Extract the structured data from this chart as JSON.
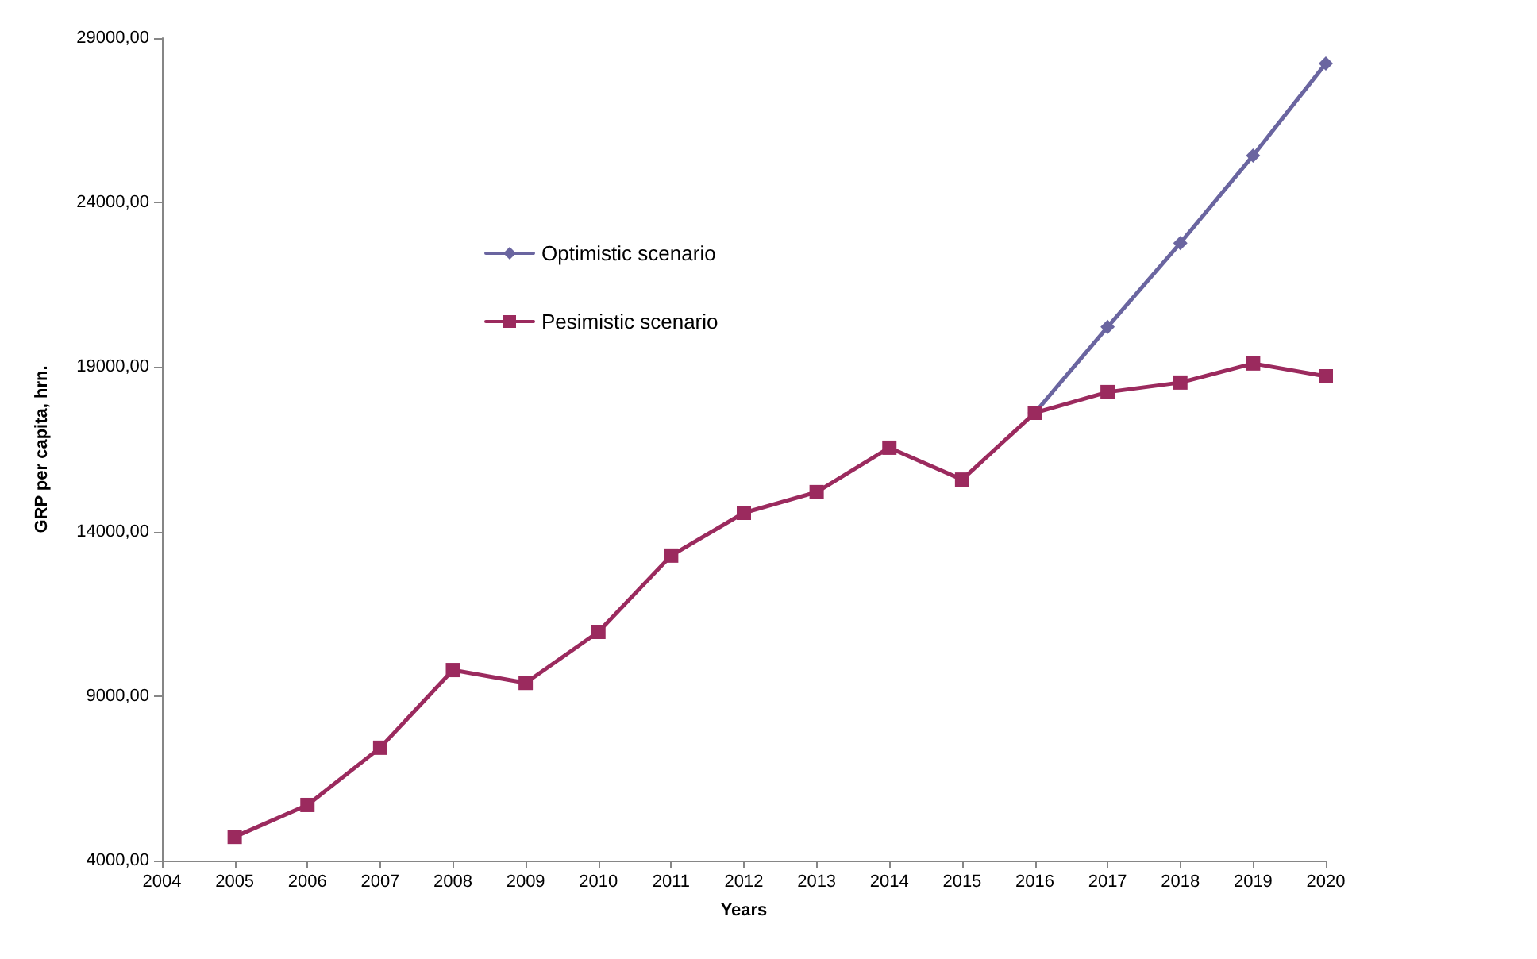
{
  "chart_data": {
    "type": "line",
    "xlabel": "Years",
    "ylabel": "GRP per capita, hrn.",
    "x": [
      2005,
      2006,
      2007,
      2008,
      2009,
      2010,
      2011,
      2012,
      2013,
      2014,
      2015,
      2016,
      2017,
      2018,
      2019,
      2020
    ],
    "series": [
      {
        "name": "Optimistic scenario",
        "color": "#6a65a0",
        "marker": "diamond",
        "values": [
          null,
          null,
          null,
          null,
          null,
          null,
          null,
          null,
          null,
          null,
          null,
          17610,
          20220,
          22770,
          25430,
          28230
        ]
      },
      {
        "name": "Pesimistic scenario",
        "color": "#9b2a5e",
        "marker": "square",
        "values": [
          4720,
          5690,
          7430,
          9790,
          9400,
          10950,
          13270,
          14570,
          15200,
          16550,
          15580,
          17610,
          18240,
          18530,
          19110,
          18720
        ]
      }
    ],
    "xlim": [
      2004,
      2020
    ],
    "xticks": [
      2004,
      2005,
      2006,
      2007,
      2008,
      2009,
      2010,
      2011,
      2012,
      2013,
      2014,
      2015,
      2016,
      2017,
      2018,
      2019,
      2020
    ],
    "ylim": [
      4000,
      29000
    ],
    "yticks": [
      {
        "value": 4000,
        "label": "4000,00"
      },
      {
        "value": 9000,
        "label": "9000,00"
      },
      {
        "value": 14000,
        "label": "14000,00"
      },
      {
        "value": 19000,
        "label": "19000,00"
      },
      {
        "value": 24000,
        "label": "24000,00"
      },
      {
        "value": 29000,
        "label": "29000,00"
      }
    ],
    "grid": false,
    "legend": "top left",
    "line_style": "solid"
  }
}
